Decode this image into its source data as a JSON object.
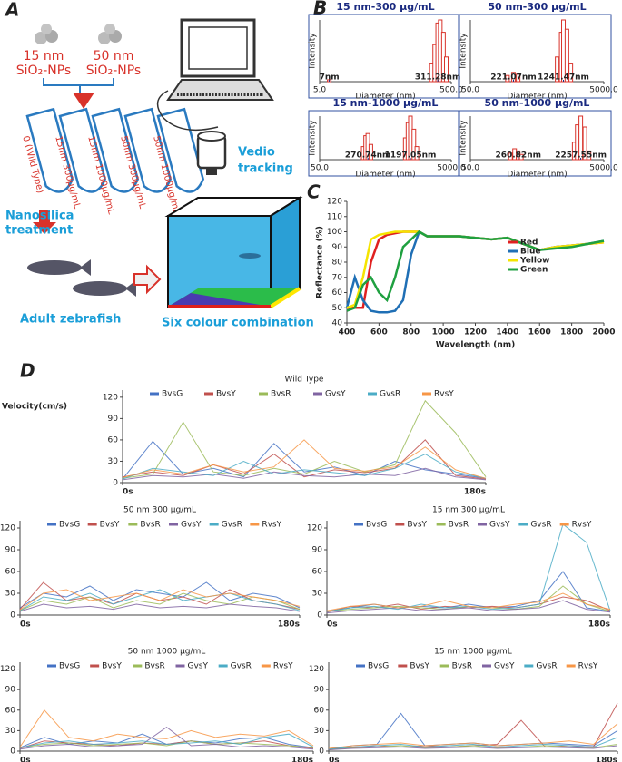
{
  "panel_labels": [
    "A",
    "B",
    "C",
    "D"
  ],
  "panel_a": {
    "np1_size": "15 nm",
    "np1_name": "SiO₂-NPs",
    "np2_size": "50 nm",
    "np2_name": "SiO₂-NPs",
    "tubes": [
      "0 (Wild Type)",
      "15nm 300µg/mL",
      "15nm 1000µg/mL",
      "50nm 300µg/mL",
      "50nm 1000µg/mL"
    ],
    "treatment": [
      "Nanosilica",
      "treatment"
    ],
    "fish": "Adult zebrafish",
    "tracking": [
      "Vedio",
      "tracking"
    ],
    "combination": "Six colour combination"
  },
  "chart_data": [
    {
      "type": "bar",
      "title": "15 nm-300 µg/mL",
      "x_label": "Diameter (nm)",
      "y_label": "Intensity",
      "log_x": true,
      "xlim": [
        5,
        500
      ],
      "xticks": [
        {
          "value": 5,
          "label": "5.0"
        },
        {
          "value": 500,
          "label": "500.0"
        }
      ],
      "ylim": [
        0,
        100
      ],
      "color": "#d8322a",
      "x": [
        7,
        250,
        280,
        311,
        340,
        380,
        420
      ],
      "values": [
        3,
        30,
        60,
        95,
        100,
        80,
        40
      ],
      "annotations": [
        {
          "x": 7,
          "text": "7nm"
        },
        {
          "x": 311.28,
          "text": "311.28nm"
        }
      ]
    },
    {
      "type": "bar",
      "title": "50 nm-300 µg/mL",
      "x_label": "Diameter (nm)",
      "y_label": "Intensity",
      "log_x": true,
      "xlim": [
        50,
        5000
      ],
      "xticks": [
        {
          "value": 50,
          "label": "50.0"
        },
        {
          "value": 5000,
          "label": "5000.0"
        }
      ],
      "ylim": [
        0,
        100
      ],
      "color": "#d8322a",
      "x": [
        180,
        221,
        260,
        1000,
        1150,
        1241,
        1400,
        1600
      ],
      "values": [
        10,
        15,
        12,
        40,
        80,
        100,
        85,
        30
      ],
      "annotations": [
        {
          "x": 221.07,
          "text": "221.07nm"
        },
        {
          "x": 1241.47,
          "text": "1241.47nm"
        }
      ]
    },
    {
      "type": "bar",
      "title": "15 nm-1000 µg/mL",
      "x_label": "Diameter (nm)",
      "y_label": "Intensity",
      "log_x": true,
      "xlim": [
        50,
        5000
      ],
      "xticks": [
        {
          "value": 50,
          "label": "50.0"
        },
        {
          "value": 5000,
          "label": "5000.0"
        }
      ],
      "ylim": [
        0,
        100
      ],
      "color": "#d8322a",
      "x": [
        230,
        250,
        270,
        300,
        1000,
        1100,
        1197,
        1350,
        1500
      ],
      "values": [
        30,
        55,
        60,
        35,
        50,
        85,
        100,
        70,
        30
      ],
      "annotations": [
        {
          "x": 270.74,
          "text": "270.74nm"
        },
        {
          "x": 1197.05,
          "text": "1197.05nm"
        }
      ]
    },
    {
      "type": "bar",
      "title": "50 nm-1000 µg/mL",
      "x_label": "Diameter (nm)",
      "y_label": "Intensity",
      "log_x": true,
      "xlim": [
        50,
        5000
      ],
      "xticks": [
        {
          "value": 50,
          "label": "50.0"
        },
        {
          "value": 5000,
          "label": "5000.0"
        }
      ],
      "ylim": [
        0,
        100
      ],
      "color": "#d8322a",
      "x": [
        200,
        230,
        260,
        290,
        1800,
        2000,
        2257,
        2600,
        3000
      ],
      "values": [
        15,
        25,
        20,
        12,
        40,
        80,
        100,
        75,
        20
      ],
      "annotations": [
        {
          "x": 260.82,
          "text": "260.82nm"
        },
        {
          "x": 2257.55,
          "text": "2257.55nm"
        }
      ]
    },
    {
      "type": "line",
      "x_label": "Wavelength (nm)",
      "y_label": "Reflectance (%)",
      "legend": "right",
      "line_width": 2.5,
      "xlim": [
        400,
        2000
      ],
      "xticks": [
        400,
        600,
        800,
        1000,
        1200,
        1400,
        1600,
        1800,
        2000
      ],
      "ylim": [
        40,
        120
      ],
      "yticks": [
        40,
        50,
        60,
        70,
        80,
        90,
        100,
        110,
        120
      ],
      "x": [
        400,
        450,
        500,
        550,
        600,
        650,
        700,
        750,
        800,
        850,
        900,
        1000,
        1100,
        1200,
        1300,
        1400,
        1500,
        1600,
        1700,
        1800,
        1900,
        2000
      ],
      "series": [
        {
          "name": "Red",
          "color": "#e02020",
          "values": [
            50,
            50,
            50,
            80,
            95,
            98,
            99,
            100,
            100,
            100,
            97,
            97,
            97,
            96,
            95,
            96,
            92,
            88,
            90,
            91,
            92,
            93
          ]
        },
        {
          "name": "Blue",
          "color": "#1f6fb5",
          "values": [
            50,
            70,
            55,
            48,
            47,
            47,
            48,
            55,
            85,
            100,
            97,
            97,
            97,
            96,
            95,
            96,
            92,
            88,
            90,
            91,
            92,
            94
          ]
        },
        {
          "name": "Yellow",
          "color": "#f5e400",
          "values": [
            50,
            52,
            70,
            95,
            98,
            99,
            100,
            100,
            100,
            100,
            97,
            97,
            97,
            96,
            95,
            96,
            92,
            88,
            90,
            91,
            92,
            93
          ]
        },
        {
          "name": "Green",
          "color": "#1fa040",
          "values": [
            48,
            50,
            65,
            70,
            60,
            55,
            70,
            90,
            95,
            100,
            97,
            97,
            97,
            96,
            95,
            96,
            92,
            88,
            89,
            90,
            92,
            94
          ]
        }
      ]
    },
    {
      "type": "line",
      "title": "Wild Type",
      "y_label": "Velocity(cm/s)",
      "legend": "top",
      "line_width": 1,
      "xlim": [
        0,
        180
      ],
      "xticks": [
        {
          "value": 0,
          "label": "0s"
        },
        {
          "value": 180,
          "label": "180s"
        }
      ],
      "ylim": [
        0,
        130
      ],
      "yticks": [
        0,
        30,
        60,
        90,
        120
      ],
      "x": [
        0,
        15,
        30,
        45,
        60,
        75,
        90,
        105,
        120,
        135,
        150,
        165,
        180
      ],
      "series": [
        {
          "name": "BvsG",
          "color": "#4472c4",
          "values": [
            5,
            58,
            12,
            20,
            8,
            55,
            15,
            22,
            10,
            30,
            18,
            12,
            6
          ]
        },
        {
          "name": "BvsY",
          "color": "#c0504d",
          "values": [
            8,
            15,
            10,
            25,
            12,
            40,
            8,
            18,
            14,
            20,
            60,
            10,
            5
          ]
        },
        {
          "name": "BvsR",
          "color": "#9bbb59",
          "values": [
            6,
            12,
            85,
            15,
            10,
            20,
            12,
            30,
            15,
            25,
            115,
            70,
            8
          ]
        },
        {
          "name": "GvsY",
          "color": "#8064a2",
          "values": [
            4,
            10,
            8,
            12,
            6,
            15,
            10,
            8,
            12,
            10,
            20,
            8,
            4
          ]
        },
        {
          "name": "GvsR",
          "color": "#4bacc6",
          "values": [
            5,
            20,
            15,
            10,
            30,
            12,
            18,
            14,
            10,
            20,
            40,
            15,
            6
          ]
        },
        {
          "name": "RvsY",
          "color": "#f79646",
          "values": [
            7,
            18,
            12,
            25,
            15,
            22,
            60,
            20,
            16,
            22,
            50,
            18,
            6
          ]
        }
      ]
    },
    {
      "type": "line",
      "title": "50 nm 300 µg/mL",
      "legend": "top",
      "line_width": 1,
      "xlim": [
        0,
        180
      ],
      "xticks": [
        {
          "value": 0,
          "label": "0s"
        },
        {
          "value": 180,
          "label": "180s"
        }
      ],
      "ylim": [
        0,
        130
      ],
      "yticks": [
        0,
        30,
        60,
        90,
        120
      ],
      "x": [
        0,
        15,
        30,
        45,
        60,
        75,
        90,
        105,
        120,
        135,
        150,
        165,
        180
      ],
      "series": [
        {
          "name": "BvsG",
          "color": "#4472c4",
          "values": [
            10,
            30,
            25,
            40,
            20,
            35,
            30,
            25,
            45,
            20,
            30,
            25,
            10
          ]
        },
        {
          "name": "BvsY",
          "color": "#c0504d",
          "values": [
            8,
            45,
            20,
            25,
            15,
            30,
            20,
            25,
            15,
            35,
            20,
            15,
            8
          ]
        },
        {
          "name": "BvsR",
          "color": "#9bbb59",
          "values": [
            6,
            20,
            15,
            25,
            10,
            20,
            15,
            30,
            20,
            15,
            25,
            20,
            8
          ]
        },
        {
          "name": "GvsY",
          "color": "#8064a2",
          "values": [
            5,
            15,
            10,
            12,
            8,
            15,
            10,
            12,
            10,
            15,
            12,
            10,
            5
          ]
        },
        {
          "name": "GvsR",
          "color": "#4bacc6",
          "values": [
            6,
            25,
            20,
            30,
            15,
            25,
            35,
            20,
            25,
            30,
            20,
            15,
            6
          ]
        },
        {
          "name": "RvsY",
          "color": "#f79646",
          "values": [
            7,
            30,
            35,
            20,
            25,
            30,
            20,
            35,
            25,
            30,
            25,
            20,
            12
          ]
        }
      ]
    },
    {
      "type": "line",
      "title": "15 nm 300 µg/mL",
      "legend": "top",
      "line_width": 1,
      "xlim": [
        0,
        180
      ],
      "xticks": [
        {
          "value": 0,
          "label": "0s"
        },
        {
          "value": 180,
          "label": "180s"
        }
      ],
      "ylim": [
        0,
        130
      ],
      "yticks": [
        0,
        30,
        60,
        90,
        120
      ],
      "x": [
        0,
        15,
        30,
        45,
        60,
        75,
        90,
        105,
        120,
        135,
        150,
        165,
        180
      ],
      "series": [
        {
          "name": "BvsG",
          "color": "#4472c4",
          "values": [
            5,
            10,
            15,
            10,
            12,
            10,
            15,
            10,
            12,
            20,
            60,
            10,
            5
          ]
        },
        {
          "name": "BvsY",
          "color": "#c0504d",
          "values": [
            4,
            12,
            10,
            15,
            8,
            12,
            10,
            12,
            10,
            15,
            25,
            20,
            6
          ]
        },
        {
          "name": "BvsR",
          "color": "#9bbb59",
          "values": [
            5,
            8,
            10,
            12,
            10,
            8,
            12,
            10,
            8,
            12,
            40,
            15,
            5
          ]
        },
        {
          "name": "GvsY",
          "color": "#8064a2",
          "values": [
            3,
            6,
            8,
            10,
            6,
            8,
            10,
            6,
            8,
            10,
            20,
            8,
            4
          ]
        },
        {
          "name": "GvsR",
          "color": "#4bacc6",
          "values": [
            5,
            10,
            12,
            8,
            15,
            10,
            12,
            8,
            10,
            15,
            125,
            100,
            6
          ]
        },
        {
          "name": "RvsY",
          "color": "#f79646",
          "values": [
            6,
            12,
            15,
            10,
            12,
            20,
            12,
            10,
            15,
            18,
            30,
            15,
            8
          ]
        }
      ]
    },
    {
      "type": "line",
      "title": "50 nm 1000 µg/mL",
      "legend": "top",
      "line_width": 1,
      "xlim": [
        0,
        180
      ],
      "xticks": [
        {
          "value": 0,
          "label": "0s"
        },
        {
          "value": 180,
          "label": "180s"
        }
      ],
      "ylim": [
        0,
        130
      ],
      "yticks": [
        0,
        30,
        60,
        90,
        120
      ],
      "x": [
        0,
        15,
        30,
        45,
        60,
        75,
        90,
        105,
        120,
        135,
        150,
        165,
        180
      ],
      "series": [
        {
          "name": "BvsG",
          "color": "#4472c4",
          "values": [
            5,
            20,
            10,
            15,
            12,
            25,
            10,
            15,
            12,
            18,
            20,
            10,
            5
          ]
        },
        {
          "name": "BvsY",
          "color": "#c0504d",
          "values": [
            4,
            15,
            12,
            10,
            8,
            12,
            10,
            15,
            10,
            12,
            15,
            8,
            4
          ]
        },
        {
          "name": "BvsR",
          "color": "#9bbb59",
          "values": [
            5,
            10,
            12,
            8,
            10,
            12,
            8,
            15,
            10,
            12,
            10,
            8,
            5
          ]
        },
        {
          "name": "GvsY",
          "color": "#8064a2",
          "values": [
            3,
            8,
            10,
            6,
            8,
            10,
            35,
            8,
            10,
            6,
            8,
            6,
            3
          ]
        },
        {
          "name": "GvsR",
          "color": "#4bacc6",
          "values": [
            5,
            12,
            15,
            10,
            12,
            15,
            10,
            12,
            15,
            10,
            20,
            25,
            6
          ]
        },
        {
          "name": "RvsY",
          "color": "#f79646",
          "values": [
            6,
            60,
            20,
            15,
            25,
            20,
            18,
            30,
            20,
            25,
            22,
            30,
            8
          ]
        }
      ]
    },
    {
      "type": "line",
      "title": "15 nm 1000 µg/mL",
      "legend": "top",
      "line_width": 1,
      "xlim": [
        0,
        180
      ],
      "xticks": [
        {
          "value": 0,
          "label": "0s"
        },
        {
          "value": 180,
          "label": "180s"
        }
      ],
      "ylim": [
        0,
        130
      ],
      "yticks": [
        0,
        30,
        60,
        90,
        120
      ],
      "x": [
        0,
        15,
        30,
        45,
        60,
        75,
        90,
        105,
        120,
        135,
        150,
        165,
        180
      ],
      "series": [
        {
          "name": "BvsG",
          "color": "#4472c4",
          "values": [
            3,
            8,
            10,
            55,
            8,
            10,
            12,
            8,
            10,
            12,
            10,
            8,
            30
          ]
        },
        {
          "name": "BvsY",
          "color": "#c0504d",
          "values": [
            3,
            5,
            8,
            6,
            8,
            6,
            8,
            10,
            45,
            6,
            8,
            6,
            70
          ]
        },
        {
          "name": "BvsR",
          "color": "#9bbb59",
          "values": [
            2,
            5,
            6,
            8,
            5,
            6,
            8,
            5,
            6,
            8,
            6,
            5,
            10
          ]
        },
        {
          "name": "GvsY",
          "color": "#8064a2",
          "values": [
            2,
            4,
            5,
            6,
            4,
            5,
            6,
            4,
            5,
            6,
            5,
            4,
            8
          ]
        },
        {
          "name": "GvsR",
          "color": "#4bacc6",
          "values": [
            3,
            6,
            8,
            10,
            6,
            8,
            10,
            6,
            8,
            10,
            8,
            6,
            20
          ]
        },
        {
          "name": "RvsY",
          "color": "#f79646",
          "values": [
            4,
            8,
            10,
            12,
            8,
            10,
            12,
            8,
            10,
            12,
            15,
            10,
            40
          ]
        }
      ]
    }
  ]
}
